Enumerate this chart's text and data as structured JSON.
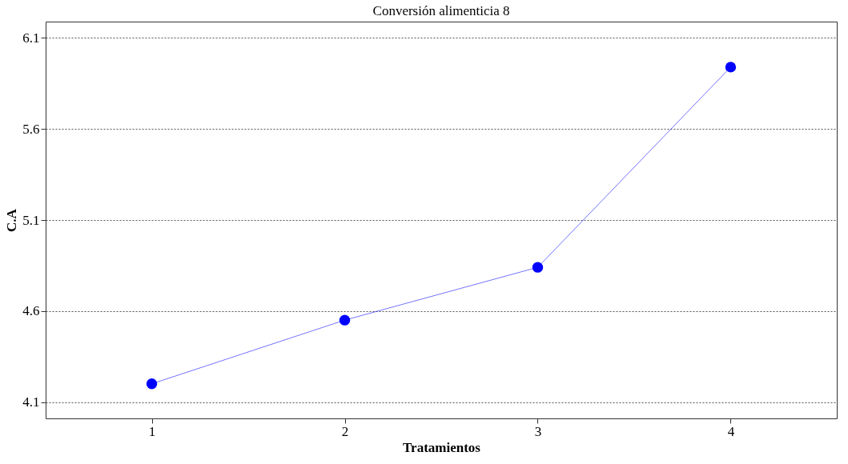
{
  "chart_data": {
    "type": "line",
    "title": "Conversión alimenticia 8",
    "xlabel": "Tratamientos",
    "ylabel": "C.A",
    "x": [
      1,
      2,
      3,
      4
    ],
    "series": [
      {
        "color": "#0000ff",
        "values": [
          4.2,
          4.55,
          4.84,
          5.94
        ]
      }
    ],
    "xlim": [
      0.45,
      4.55
    ],
    "xticks": [
      1,
      2,
      3,
      4
    ],
    "ylim": [
      4.01,
      6.19
    ],
    "yticks": [
      4.1,
      4.6,
      5.1,
      5.6,
      6.1
    ],
    "grid": "y",
    "marker": "circle",
    "line_style": "solid",
    "legend": false
  }
}
